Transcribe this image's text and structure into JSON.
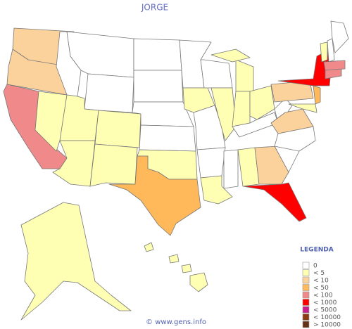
{
  "title": "JORGE",
  "legend": {
    "title": "LEGENDA",
    "items": [
      {
        "label": "0",
        "color": "#ffffff"
      },
      {
        "label": "< 5",
        "color": "#ffffb4"
      },
      {
        "label": "< 10",
        "color": "#fcd29c"
      },
      {
        "label": "< 50",
        "color": "#ffb95a"
      },
      {
        "label": "< 100",
        "color": "#f08a8a"
      },
      {
        "label": "< 1000",
        "color": "#ff0000"
      },
      {
        "label": "< 5000",
        "color": "#c81e8c"
      },
      {
        "label": "< 10000",
        "color": "#8c3c14"
      },
      {
        "label": "> 10000",
        "color": "#643214"
      }
    ]
  },
  "regions": [
    2,
    2,
    4,
    1,
    0,
    0,
    0,
    1,
    1,
    1,
    1,
    0,
    0,
    0,
    0,
    1,
    3,
    0,
    1,
    0,
    0,
    1,
    0,
    1,
    1,
    1,
    1,
    0,
    1,
    0,
    1,
    2,
    5,
    0,
    0,
    0,
    2,
    2,
    5,
    3,
    1,
    1,
    0,
    0,
    4,
    4,
    1,
    1,
    1,
    1,
    1
  ],
  "footer": "© www.gens.info"
}
